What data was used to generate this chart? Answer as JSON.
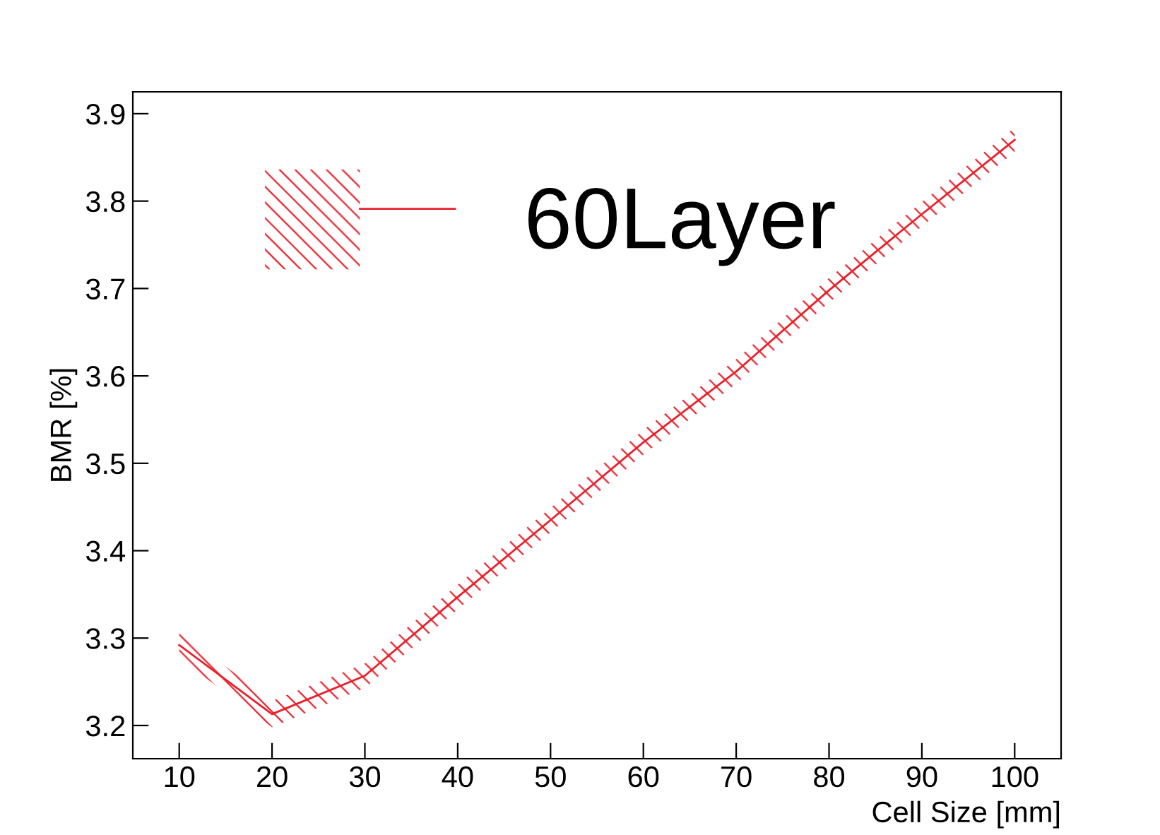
{
  "chart_data": {
    "type": "line",
    "xlabel": "Cell Size [mm]",
    "ylabel": "BMR [%]",
    "x": [
      10,
      20,
      30,
      40,
      50,
      60,
      70,
      80,
      90,
      100
    ],
    "series": [
      {
        "name": "60Layer",
        "color": "#e8202a",
        "values": [
          3.292,
          3.213,
          3.257,
          3.347,
          3.435,
          3.524,
          3.605,
          3.698,
          3.785,
          3.87
        ],
        "lower": [
          3.277,
          3.198,
          3.243,
          3.333,
          3.421,
          3.51,
          3.591,
          3.684,
          3.771,
          3.856
        ],
        "upper": [
          3.307,
          3.228,
          3.271,
          3.361,
          3.449,
          3.538,
          3.619,
          3.712,
          3.799,
          3.884
        ]
      }
    ],
    "xlim": [
      5,
      105
    ],
    "ylim": [
      3.162,
      3.925
    ],
    "xticks": [
      10,
      20,
      30,
      40,
      50,
      60,
      70,
      80,
      90,
      100
    ],
    "yticks": [
      3.2,
      3.3,
      3.4,
      3.5,
      3.6,
      3.7,
      3.8,
      3.9
    ],
    "grid": false,
    "legend": "top",
    "marker": "none",
    "line_style": "solid"
  }
}
